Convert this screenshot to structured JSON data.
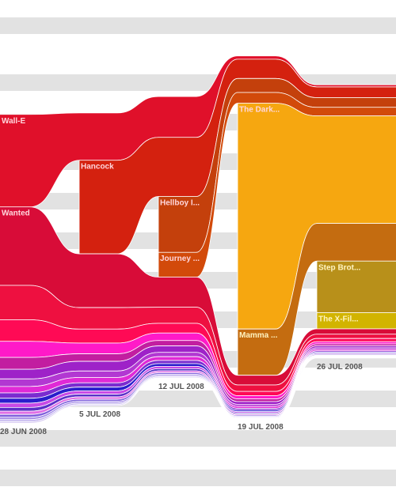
{
  "chart_data": {
    "type": "area",
    "title": "",
    "grid": true,
    "background_bands": "alternating light gray horizontal bands",
    "weeks": [
      "28 JUN 2008",
      "5 JUL 2008",
      "12 JUL 2008",
      "19 JUL 2008",
      "26 JUL 2008"
    ],
    "series": [
      {
        "name": "Wall-E",
        "color": "#e0102a",
        "values": [
          8.6,
          4.4,
          3.8,
          0.3,
          0.2
        ]
      },
      {
        "name": "Hancock",
        "color": "#d4210f",
        "values": [
          0,
          8.7,
          5.5,
          1.8,
          1.0
        ]
      },
      {
        "name": "Hellboy I...",
        "color": "#c4400c",
        "values": [
          0,
          0,
          5.2,
          1.3,
          0.9
        ]
      },
      {
        "name": "Journey ...",
        "color": "#d24a0a",
        "values": [
          0,
          0,
          2.3,
          1.0,
          0.8
        ]
      },
      {
        "name": "The Dark...",
        "color": "#f6a710",
        "values": [
          0,
          0,
          0,
          21.0,
          10.0
        ]
      },
      {
        "name": "Mamma ...",
        "color": "#c46c10",
        "values": [
          0,
          0,
          0,
          4.3,
          3.5
        ]
      },
      {
        "name": "Step Brot...",
        "color": "#b8901a",
        "values": [
          0,
          0,
          0,
          0,
          4.8
        ]
      },
      {
        "name": "The X-Fil...",
        "color": "#d2b400",
        "values": [
          0,
          0,
          0,
          0,
          1.5
        ]
      },
      {
        "name": "Wanted",
        "color": "#d80c38",
        "values": [
          7.3,
          5.0,
          2.8,
          0.9,
          0.5
        ]
      },
      {
        "name": "",
        "color": "#ee1040",
        "values": [
          3.2,
          2.0,
          1.5,
          0.6,
          0.4
        ]
      },
      {
        "name": "",
        "color": "#ff0a55",
        "values": [
          2.0,
          1.3,
          0.9,
          0.4,
          0.3
        ]
      },
      {
        "name": "",
        "color": "#ff1ac8",
        "values": [
          1.5,
          1.0,
          0.7,
          0.3,
          0.2
        ]
      },
      {
        "name": "",
        "color": "#c21ea0",
        "values": [
          1.1,
          0.7,
          0.5,
          0.25,
          0.18
        ]
      },
      {
        "name": "",
        "color": "#9e22c8",
        "values": [
          0.9,
          0.9,
          0.6,
          0.25,
          0.18
        ]
      },
      {
        "name": "",
        "color": "#b238d2",
        "values": [
          0.7,
          0.6,
          0.4,
          0.2,
          0.15
        ]
      },
      {
        "name": "",
        "color": "#e02ad6",
        "values": [
          0.6,
          0.5,
          0.35,
          0.18,
          0.14
        ]
      },
      {
        "name": "",
        "color": "#7a2cd0",
        "values": [
          0.5,
          0.4,
          0.3,
          0.16,
          0.12
        ]
      },
      {
        "name": "",
        "color": "#2a1ecc",
        "values": [
          0.45,
          0.35,
          0.25,
          0.14,
          0.1
        ]
      },
      {
        "name": "",
        "color": "#c84ae6",
        "values": [
          0.4,
          0.3,
          0.22,
          0.12,
          0.09
        ]
      },
      {
        "name": "",
        "color": "#5a30c8",
        "values": [
          0.35,
          0.26,
          0.2,
          0.11,
          0.08
        ]
      },
      {
        "name": "",
        "color": "#e070e6",
        "values": [
          0.3,
          0.22,
          0.17,
          0.1,
          0.07
        ]
      },
      {
        "name": "",
        "color": "#8060dc",
        "values": [
          0.26,
          0.19,
          0.15,
          0.09,
          0.06
        ]
      },
      {
        "name": "",
        "color": "#a890e8",
        "values": [
          0.22,
          0.16,
          0.13,
          0.08,
          0.05
        ]
      },
      {
        "name": "",
        "color": "#c0b0ee",
        "values": [
          0.18,
          0.13,
          0.11,
          0.07,
          0.05
        ]
      },
      {
        "name": "",
        "color": "#d8ccf2",
        "values": [
          0.15,
          0.11,
          0.09,
          0.06,
          0.04
        ]
      }
    ]
  }
}
